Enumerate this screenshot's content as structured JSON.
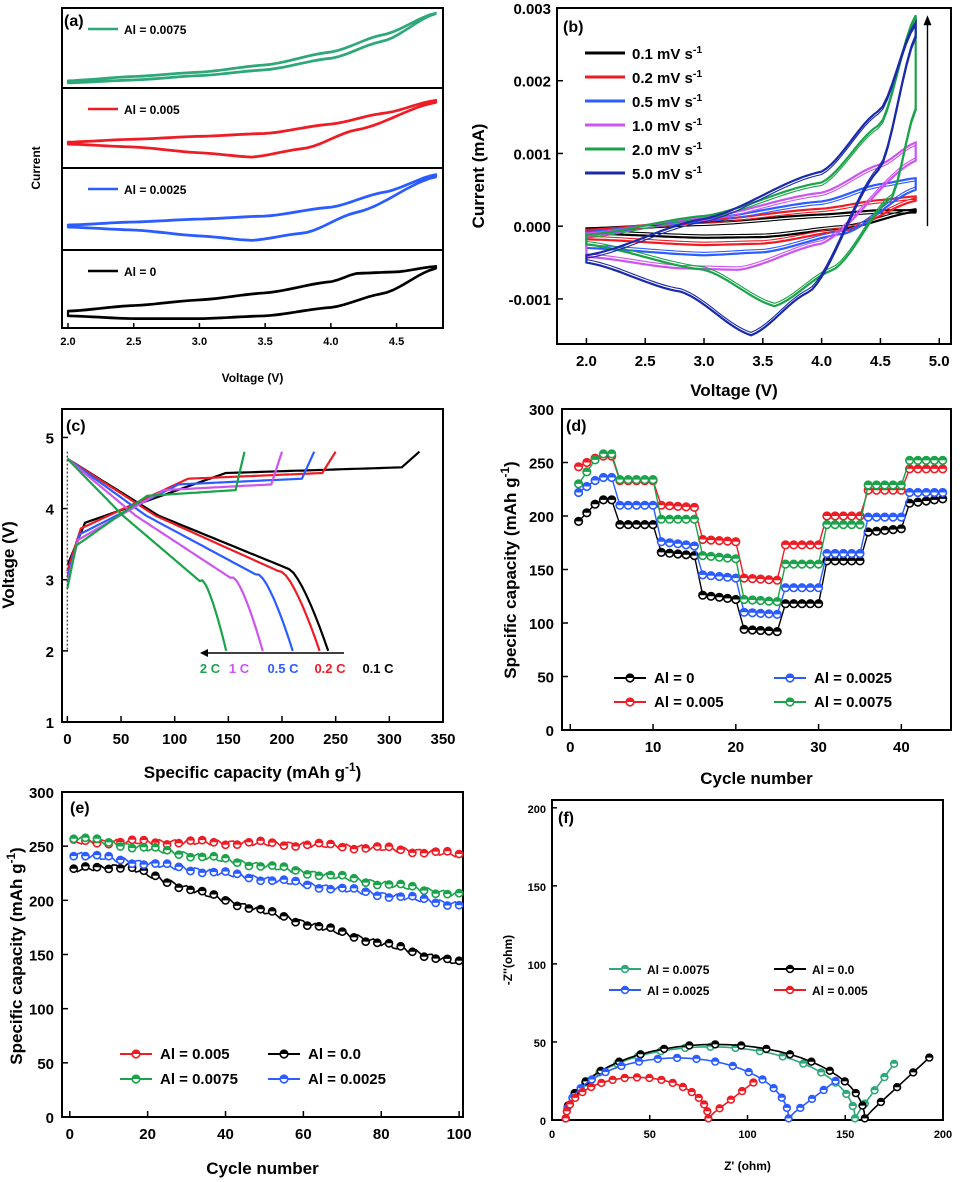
{
  "figure": {
    "background": "#ffffff"
  },
  "colors": {
    "black": "#000000",
    "red": "#ee1c24",
    "blue": "#2b5cff",
    "green": "#1aa34a",
    "teal": "#2ea878",
    "violet": "#cc55ee",
    "navy": "#1a2aa8"
  },
  "chart_data": [
    {
      "panel": "(a)",
      "type": "line",
      "xlabel": "Voltage (V)",
      "ylabel": "Current",
      "xlim": [
        2.0,
        4.8
      ],
      "xticks": [
        "2.0",
        "2.5",
        "3.0",
        "3.5",
        "4.0",
        "4.5"
      ],
      "xtick_values": [
        2.0,
        2.5,
        3.0,
        3.5,
        4.0,
        4.5
      ],
      "stacked_subplots": [
        {
          "label": "Al = 0.0075",
          "color": "#2ea878",
          "upper": [
            [
              2.0,
              0.04
            ],
            [
              2.5,
              0.1
            ],
            [
              3.0,
              0.16
            ],
            [
              3.5,
              0.26
            ],
            [
              4.0,
              0.44
            ],
            [
              4.4,
              0.68
            ],
            [
              4.8,
              0.98
            ]
          ],
          "lower": [
            [
              2.0,
              0.02
            ],
            [
              2.5,
              0.06
            ],
            [
              3.0,
              0.12
            ],
            [
              3.5,
              0.2
            ],
            [
              4.0,
              0.36
            ],
            [
              4.4,
              0.6
            ],
            [
              4.8,
              0.98
            ]
          ]
        },
        {
          "label": "Al = 0.005",
          "color": "#ee1c24",
          "upper": [
            [
              2.0,
              0.3
            ],
            [
              2.5,
              0.34
            ],
            [
              3.0,
              0.38
            ],
            [
              3.5,
              0.42
            ],
            [
              4.0,
              0.55
            ],
            [
              4.4,
              0.7
            ],
            [
              4.8,
              0.88
            ]
          ],
          "lower": [
            [
              2.0,
              0.28
            ],
            [
              2.5,
              0.24
            ],
            [
              3.0,
              0.16
            ],
            [
              3.4,
              0.1
            ],
            [
              3.8,
              0.22
            ],
            [
              4.2,
              0.48
            ],
            [
              4.8,
              0.86
            ]
          ]
        },
        {
          "label": "Al = 0.0025",
          "color": "#2b5cff",
          "upper": [
            [
              2.0,
              0.28
            ],
            [
              2.5,
              0.32
            ],
            [
              3.0,
              0.36
            ],
            [
              3.5,
              0.4
            ],
            [
              4.0,
              0.52
            ],
            [
              4.4,
              0.72
            ],
            [
              4.8,
              0.96
            ]
          ],
          "lower": [
            [
              2.0,
              0.26
            ],
            [
              2.5,
              0.22
            ],
            [
              3.0,
              0.14
            ],
            [
              3.4,
              0.08
            ],
            [
              3.8,
              0.18
            ],
            [
              4.2,
              0.46
            ],
            [
              4.8,
              0.94
            ]
          ]
        },
        {
          "label": "Al = 0",
          "color": "#000000",
          "upper": [
            [
              2.0,
              0.18
            ],
            [
              2.5,
              0.26
            ],
            [
              3.0,
              0.34
            ],
            [
              3.5,
              0.44
            ],
            [
              4.0,
              0.6
            ],
            [
              4.2,
              0.72
            ],
            [
              4.5,
              0.74
            ],
            [
              4.8,
              0.82
            ]
          ],
          "lower": [
            [
              2.0,
              0.12
            ],
            [
              2.5,
              0.08
            ],
            [
              3.0,
              0.08
            ],
            [
              3.5,
              0.12
            ],
            [
              4.0,
              0.24
            ],
            [
              4.4,
              0.44
            ],
            [
              4.8,
              0.8
            ]
          ]
        }
      ]
    },
    {
      "panel": "(b)",
      "type": "line",
      "xlabel": "Voltage (V)",
      "ylabel": "Current (mA)",
      "xlim": [
        1.75,
        5.1
      ],
      "ylim": [
        -0.00162,
        0.003
      ],
      "xticks": [
        "2.0",
        "2.5",
        "3.0",
        "3.5",
        "4.0",
        "4.5",
        "5.0"
      ],
      "xtick_values": [
        2.0,
        2.5,
        3.0,
        3.5,
        4.0,
        4.5,
        5.0
      ],
      "yticks": [
        "0.003",
        "0.002",
        "0.001",
        "0.000",
        "-0.001"
      ],
      "ytick_values": [
        0.003,
        0.002,
        0.001,
        0.0,
        -0.001
      ],
      "arrow": {
        "x": 4.9,
        "y_from": 0.0,
        "y_to": 0.0029
      },
      "series": [
        {
          "name": "0.1 mV s-1",
          "color": "#000000",
          "upper": [
            [
              2.0,
              -3e-05
            ],
            [
              3.0,
              5e-05
            ],
            [
              4.0,
              0.00016
            ],
            [
              4.5,
              0.00022
            ],
            [
              4.8,
              0.00022
            ]
          ],
          "lower": [
            [
              2.0,
              -0.0001
            ],
            [
              3.0,
              -0.00016
            ],
            [
              3.5,
              -0.00015
            ],
            [
              4.2,
              -3e-05
            ],
            [
              4.8,
              0.0002
            ]
          ]
        },
        {
          "name": "0.2 mV s-1",
          "color": "#ee1c24",
          "upper": [
            [
              2.0,
              -5e-05
            ],
            [
              3.0,
              8e-05
            ],
            [
              4.0,
              0.00024
            ],
            [
              4.5,
              0.00036
            ],
            [
              4.8,
              0.00041
            ]
          ],
          "lower": [
            [
              2.0,
              -0.00018
            ],
            [
              3.0,
              -0.00026
            ],
            [
              3.5,
              -0.00024
            ],
            [
              4.2,
              -6e-05
            ],
            [
              4.8,
              0.00035
            ]
          ]
        },
        {
          "name": "0.5 mV s-1",
          "color": "#2b5cff",
          "upper": [
            [
              2.0,
              -8e-05
            ],
            [
              3.0,
              0.0001
            ],
            [
              4.0,
              0.00034
            ],
            [
              4.5,
              0.00058
            ],
            [
              4.8,
              0.00066
            ]
          ],
          "lower": [
            [
              2.0,
              -0.0003
            ],
            [
              3.0,
              -0.0004
            ],
            [
              3.5,
              -0.00036
            ],
            [
              4.2,
              -0.0001
            ],
            [
              4.8,
              0.0005
            ]
          ]
        },
        {
          "name": "1.0 mV s-1",
          "color": "#cc55ee",
          "upper": [
            [
              2.0,
              -0.0001
            ],
            [
              3.0,
              0.00012
            ],
            [
              4.0,
              0.00046
            ],
            [
              4.5,
              0.00085
            ],
            [
              4.8,
              0.00115
            ]
          ],
          "lower": [
            [
              2.0,
              -0.00042
            ],
            [
              2.8,
              -0.00058
            ],
            [
              3.3,
              -0.0006
            ],
            [
              4.0,
              -0.00024
            ],
            [
              4.8,
              0.0009
            ]
          ]
        },
        {
          "name": "2.0 mV s-1",
          "color": "#1aa34a",
          "upper": [
            [
              2.0,
              -0.00012
            ],
            [
              3.0,
              0.00014
            ],
            [
              4.0,
              0.0006
            ],
            [
              4.5,
              0.0014
            ],
            [
              4.8,
              0.0029
            ]
          ],
          "lower": [
            [
              2.0,
              -0.00025
            ],
            [
              3.0,
              -0.0006
            ],
            [
              3.6,
              -0.0011
            ],
            [
              4.1,
              -0.0006
            ],
            [
              4.6,
              0.0004
            ],
            [
              4.8,
              0.0016
            ]
          ]
        },
        {
          "name": "5.0 mV s-1",
          "color": "#1a2aa8",
          "upper": [
            [
              2.0,
              -0.0004
            ],
            [
              3.0,
              0.0001
            ],
            [
              4.0,
              0.00075
            ],
            [
              4.5,
              0.0016
            ],
            [
              4.8,
              0.0028
            ]
          ],
          "lower": [
            [
              2.0,
              -0.0005
            ],
            [
              2.8,
              -0.0009
            ],
            [
              3.4,
              -0.0015
            ],
            [
              3.9,
              -0.0009
            ],
            [
              4.5,
              0.0008
            ],
            [
              4.8,
              0.0026
            ]
          ]
        }
      ]
    },
    {
      "panel": "(c)",
      "type": "line",
      "xlabel": "Specific capacity (mAh g-1)",
      "ylabel": "Voltage (V)",
      "xlim": [
        -5,
        350
      ],
      "ylim": [
        1,
        5.4
      ],
      "xticks": [
        "0",
        "50",
        "100",
        "150",
        "200",
        "250",
        "300",
        "350"
      ],
      "xtick_values": [
        0,
        50,
        100,
        150,
        200,
        250,
        300,
        350
      ],
      "yticks": [
        "5",
        "4",
        "3",
        "2",
        "1"
      ],
      "ytick_values": [
        5,
        4,
        3,
        2,
        1
      ],
      "crate_labels": [
        {
          "text": "2 C",
          "color": "#1aa34a"
        },
        {
          "text": "1 C",
          "color": "#cc55ee"
        },
        {
          "text": "0.5 C",
          "color": "#2b5cff"
        },
        {
          "text": "0.2 C",
          "color": "#ee1c24"
        },
        {
          "text": "0.1 C",
          "color": "#000000"
        }
      ],
      "series": [
        {
          "name": "0.1 C",
          "color": "#000000",
          "charge_end": 328,
          "discharge_end": 243
        },
        {
          "name": "0.2 C",
          "color": "#ee1c24",
          "charge_end": 250,
          "discharge_end": 235
        },
        {
          "name": "0.5 C",
          "color": "#2b5cff",
          "charge_end": 230,
          "discharge_end": 210
        },
        {
          "name": "1 C",
          "color": "#cc55ee",
          "charge_end": 200,
          "discharge_end": 182
        },
        {
          "name": "2 C",
          "color": "#1aa34a",
          "charge_end": 165,
          "discharge_end": 148
        }
      ]
    },
    {
      "panel": "(d)",
      "type": "scatter",
      "xlabel": "Cycle number",
      "ylabel": "Specific capacity (mAh g-1)",
      "xlim": [
        -1,
        46
      ],
      "ylim": [
        0,
        300
      ],
      "xticks": [
        "0",
        "10",
        "20",
        "30",
        "40"
      ],
      "xtick_values": [
        0,
        10,
        20,
        30,
        40
      ],
      "yticks": [
        "300",
        "250",
        "200",
        "150",
        "100",
        "50",
        "0"
      ],
      "ytick_values": [
        300,
        250,
        200,
        150,
        100,
        50,
        0
      ],
      "series": [
        {
          "name": "Al = 0",
          "color": "#000000",
          "steps": [
            [
              195,
              215
            ],
            [
              192,
              192
            ],
            [
              166,
              163
            ],
            [
              126,
              122
            ],
            [
              94,
              92
            ],
            [
              118,
              118
            ],
            [
              158,
              158
            ],
            [
              185,
              188
            ],
            [
              212,
              216
            ]
          ]
        },
        {
          "name": "Al = 0.0025",
          "color": "#2b5cff",
          "steps": [
            [
              222,
              236
            ],
            [
              210,
              210
            ],
            [
              176,
              172
            ],
            [
              145,
              142
            ],
            [
              110,
              108
            ],
            [
              133,
              133
            ],
            [
              165,
              165
            ],
            [
              199,
              199
            ],
            [
              222,
              222
            ]
          ]
        },
        {
          "name": "Al = 0.005",
          "color": "#ee1c24",
          "steps": [
            [
              246,
              256
            ],
            [
              233,
              233
            ],
            [
              210,
              208
            ],
            [
              178,
              176
            ],
            [
              142,
              140
            ],
            [
              173,
              173
            ],
            [
              200,
              200
            ],
            [
              224,
              224
            ],
            [
              244,
              244
            ]
          ]
        },
        {
          "name": "Al = 0.0075",
          "color": "#1aa34a",
          "steps": [
            [
              230,
              258
            ],
            [
              234,
              234
            ],
            [
              197,
              197
            ],
            [
              163,
              160
            ],
            [
              122,
              120
            ],
            [
              155,
              155
            ],
            [
              192,
              192
            ],
            [
              229,
              229
            ],
            [
              252,
              252
            ]
          ]
        }
      ]
    },
    {
      "panel": "(e)",
      "type": "scatter",
      "xlabel": "Cycle number",
      "ylabel": "Specific capacity (mAh g-1)",
      "xlim": [
        -2,
        101
      ],
      "ylim": [
        0,
        300
      ],
      "xticks": [
        "0",
        "20",
        "40",
        "60",
        "80",
        "100"
      ],
      "xtick_values": [
        0,
        20,
        40,
        60,
        80,
        100
      ],
      "yticks": [
        "300",
        "250",
        "200",
        "150",
        "100",
        "50",
        "0"
      ],
      "ytick_values": [
        300,
        250,
        200,
        150,
        100,
        50,
        0
      ],
      "series": [
        {
          "name": "Al = 0.005",
          "color": "#ee1c24",
          "start": 254,
          "end": 242,
          "shape": "flat"
        },
        {
          "name": "Al = 0.0",
          "color": "#000000",
          "start": 228,
          "end": 142,
          "shape": "bump"
        },
        {
          "name": "Al = 0.0075",
          "color": "#1aa34a",
          "start": 258,
          "end": 205,
          "shape": "linear"
        },
        {
          "name": "Al = 0.0025",
          "color": "#2b5cff",
          "start": 243,
          "end": 196,
          "shape": "linear"
        }
      ]
    },
    {
      "panel": "(f)",
      "type": "scatter",
      "xlabel": "Z' (ohm)",
      "ylabel": "-Z''(ohm)",
      "xlim": [
        0,
        200
      ],
      "ylim": [
        0,
        205
      ],
      "xticks": [
        "0",
        "50",
        "100",
        "150",
        "200"
      ],
      "xtick_values": [
        0,
        50,
        100,
        150,
        200
      ],
      "yticks": [
        "200",
        "150",
        "100",
        "50",
        "0"
      ],
      "ytick_values": [
        200,
        150,
        100,
        50,
        0
      ],
      "series": [
        {
          "name": "Al = 0.0075",
          "color": "#2ea878",
          "r0": 7,
          "r1": 155,
          "tail_end": [
            175,
            36
          ]
        },
        {
          "name": "Al = 0.0",
          "color": "#000000",
          "r0": 7,
          "r1": 160,
          "tail_end": [
            193,
            40
          ]
        },
        {
          "name": "Al = 0.0025",
          "color": "#2b5cff",
          "r0": 7,
          "r1": 121,
          "tail_end": [
            145,
            25
          ]
        },
        {
          "name": "Al = 0.005",
          "color": "#ee1c24",
          "r0": 7,
          "r1": 80,
          "tail_end": [
            103,
            24
          ]
        }
      ]
    }
  ]
}
